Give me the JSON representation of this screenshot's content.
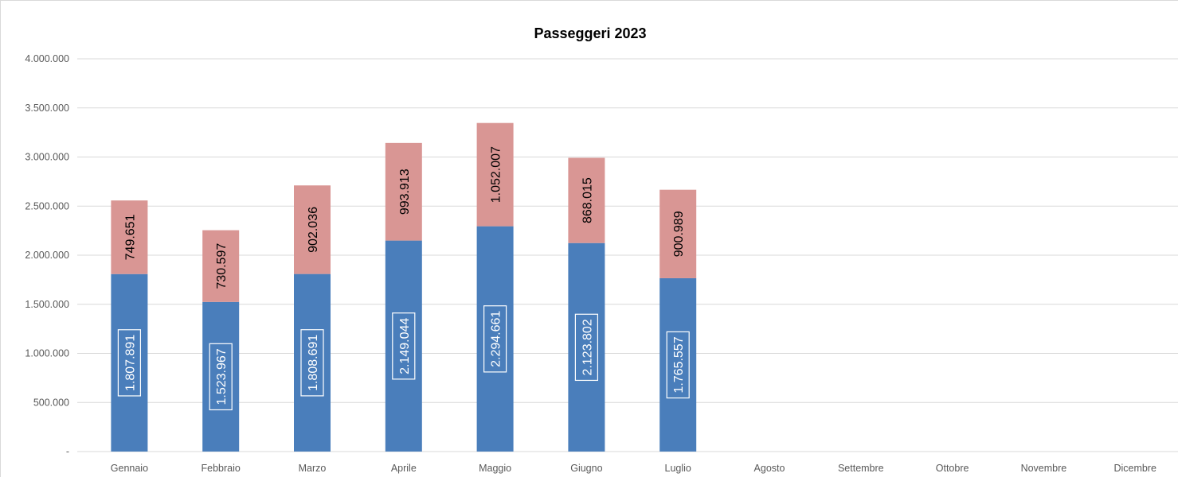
{
  "chart_data": {
    "type": "bar",
    "stacked": true,
    "title": "Passeggeri 2023",
    "xlabel": "",
    "ylabel": "",
    "ylim": [
      0,
      4000000
    ],
    "yticks": [
      "-",
      "500.000",
      "1.000.000",
      "1.500.000",
      "2.000.000",
      "2.500.000",
      "3.000.000",
      "3.500.000",
      "4.000.000"
    ],
    "grid": true,
    "legend": "none",
    "categories": [
      "Gennaio",
      "Febbraio",
      "Marzo",
      "Aprile",
      "Maggio",
      "Giugno",
      "Luglio",
      "Agosto",
      "Settembre",
      "Ottobre",
      "Novembre",
      "Dicembre"
    ],
    "series": [
      {
        "color": "#4a7ebb",
        "values": [
          1807891,
          1523967,
          1808691,
          2149044,
          2294661,
          2123802,
          1765557,
          null,
          null,
          null,
          null,
          null
        ],
        "labels": [
          "1.807.891",
          "1.523.967",
          "1.808.691",
          "2.149.044",
          "2.294.661",
          "2.123.802",
          "1.765.557",
          "",
          "",
          "",
          "",
          ""
        ]
      },
      {
        "color": "#d99694",
        "values": [
          749651,
          730597,
          902036,
          993913,
          1052007,
          868015,
          900989,
          null,
          null,
          null,
          null,
          null
        ],
        "labels": [
          "749.651",
          "730.597",
          "902.036",
          "993.913",
          "1.052.007",
          "868.015",
          "900.989",
          "",
          "",
          "",
          "",
          ""
        ]
      }
    ]
  }
}
